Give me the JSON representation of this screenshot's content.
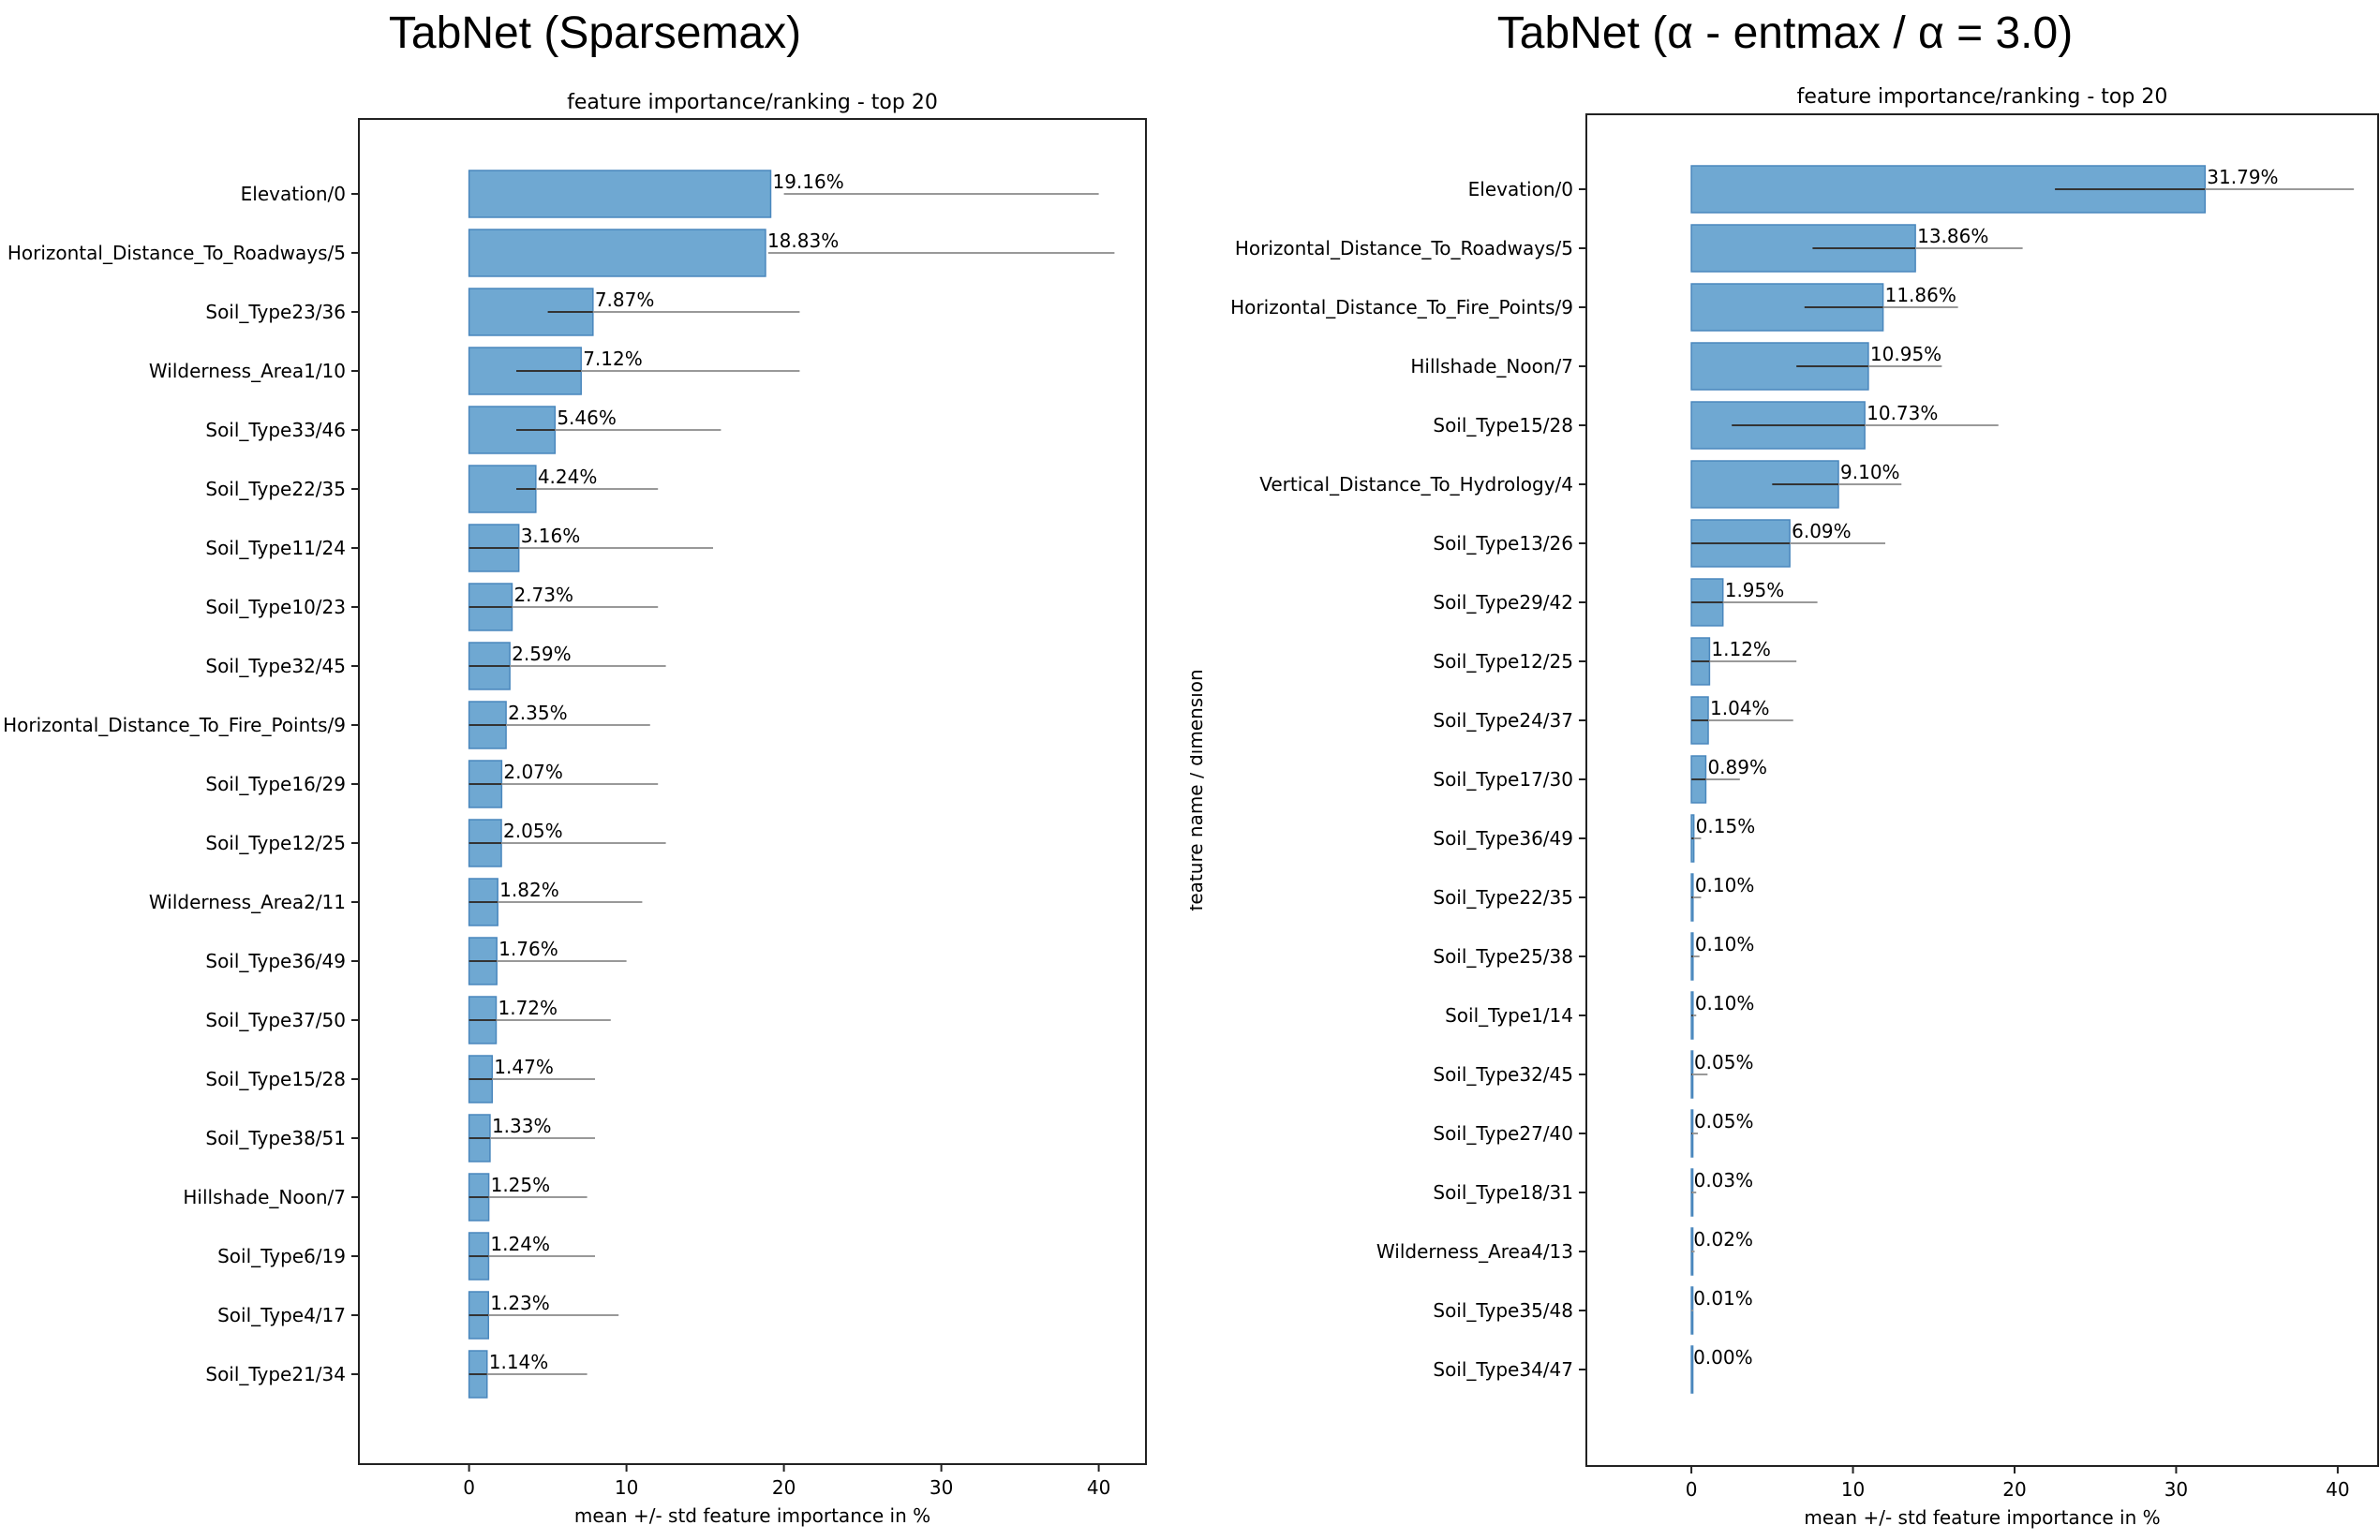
{
  "chart_data": [
    {
      "type": "bar",
      "orientation": "horizontal",
      "heading": "TabNet (Sparsemax)",
      "title": "feature importance/ranking - top 20",
      "xlabel": "mean +/- std feature importance in %",
      "ylabel": "",
      "xlim": [
        -7,
        43
      ],
      "xticks": [
        0,
        10,
        20,
        30,
        40
      ],
      "grid": false,
      "categories": [
        "Elevation/0",
        "Horizontal_Distance_To_Roadways/5",
        "Soil_Type23/36",
        "Wilderness_Area1/10",
        "Soil_Type33/46",
        "Soil_Type22/35",
        "Soil_Type11/24",
        "Soil_Type10/23",
        "Soil_Type32/45",
        "Horizontal_Distance_To_Fire_Points/9",
        "Soil_Type16/29",
        "Soil_Type12/25",
        "Wilderness_Area2/11",
        "Soil_Type36/49",
        "Soil_Type37/50",
        "Soil_Type15/28",
        "Soil_Type38/51",
        "Hillshade_Noon/7",
        "Soil_Type6/19",
        "Soil_Type4/17",
        "Soil_Type21/34"
      ],
      "values": [
        19.16,
        18.83,
        7.87,
        7.12,
        5.46,
        4.24,
        3.16,
        2.73,
        2.59,
        2.35,
        2.07,
        2.05,
        1.82,
        1.76,
        1.72,
        1.47,
        1.33,
        1.25,
        1.24,
        1.23,
        1.14
      ],
      "err_low": [
        20.0,
        19.0,
        5.0,
        3.0,
        3.0,
        3.0,
        0,
        0,
        0,
        0,
        0,
        0,
        0,
        0,
        0,
        0,
        0,
        0,
        0,
        0,
        0
      ],
      "err_high": [
        40.0,
        41.0,
        21.0,
        21.0,
        16.0,
        12.0,
        15.5,
        12.0,
        12.5,
        11.5,
        12.0,
        12.5,
        11.0,
        10.0,
        9.0,
        8.0,
        8.0,
        7.5,
        8.0,
        9.5,
        7.5
      ],
      "labels": [
        "19.16%",
        "18.83%",
        "7.87%",
        "7.12%",
        "5.46%",
        "4.24%",
        "3.16%",
        "2.73%",
        "2.59%",
        "2.35%",
        "2.07%",
        "2.05%",
        "1.82%",
        "1.76%",
        "1.72%",
        "1.47%",
        "1.33%",
        "1.25%",
        "1.24%",
        "1.23%",
        "1.14%"
      ],
      "bar_color": "#6fa8d2",
      "bar_edge": "#4a87bd"
    },
    {
      "type": "bar",
      "orientation": "horizontal",
      "heading": "TabNet (α - entmax / α = 3.0)",
      "title": "feature importance/ranking - top 20",
      "xlabel": "mean +/- std feature importance in %",
      "ylabel": "feature name / dimension",
      "xlim": [
        -6.5,
        42.5
      ],
      "xticks": [
        0,
        10,
        20,
        30,
        40
      ],
      "grid": false,
      "categories": [
        "Elevation/0",
        "Horizontal_Distance_To_Roadways/5",
        "Horizontal_Distance_To_Fire_Points/9",
        "Hillshade_Noon/7",
        "Soil_Type15/28",
        "Vertical_Distance_To_Hydrology/4",
        "Soil_Type13/26",
        "Soil_Type29/42",
        "Soil_Type12/25",
        "Soil_Type24/37",
        "Soil_Type17/30",
        "Soil_Type36/49",
        "Soil_Type22/35",
        "Soil_Type25/38",
        "Soil_Type1/14",
        "Soil_Type32/45",
        "Soil_Type27/40",
        "Soil_Type18/31",
        "Wilderness_Area4/13",
        "Soil_Type35/48",
        "Soil_Type34/47"
      ],
      "values": [
        31.79,
        13.86,
        11.86,
        10.95,
        10.73,
        9.1,
        6.09,
        1.95,
        1.12,
        1.04,
        0.89,
        0.15,
        0.1,
        0.1,
        0.1,
        0.05,
        0.05,
        0.03,
        0.02,
        0.01,
        0.0
      ],
      "err_low": [
        22.5,
        7.5,
        7.0,
        6.5,
        2.5,
        5.0,
        0,
        0,
        0,
        0,
        0,
        0,
        0,
        0,
        0,
        0,
        0,
        0,
        0,
        0,
        0
      ],
      "err_high": [
        41.0,
        20.5,
        16.5,
        15.5,
        19.0,
        13.0,
        12.0,
        7.8,
        6.5,
        6.3,
        3.0,
        0.6,
        0.6,
        0.5,
        0.3,
        1.0,
        0.4,
        0.3,
        0.2,
        0.1,
        0
      ],
      "labels": [
        "31.79%",
        "13.86%",
        "11.86%",
        "10.95%",
        "10.73%",
        "9.10%",
        "6.09%",
        "1.95%",
        "1.12%",
        "1.04%",
        "0.89%",
        "0.15%",
        "0.10%",
        "0.10%",
        "0.10%",
        "0.05%",
        "0.05%",
        "0.03%",
        "0.02%",
        "0.01%",
        "0.00%"
      ],
      "bar_color": "#6fa8d2",
      "bar_edge": "#4a87bd"
    }
  ]
}
